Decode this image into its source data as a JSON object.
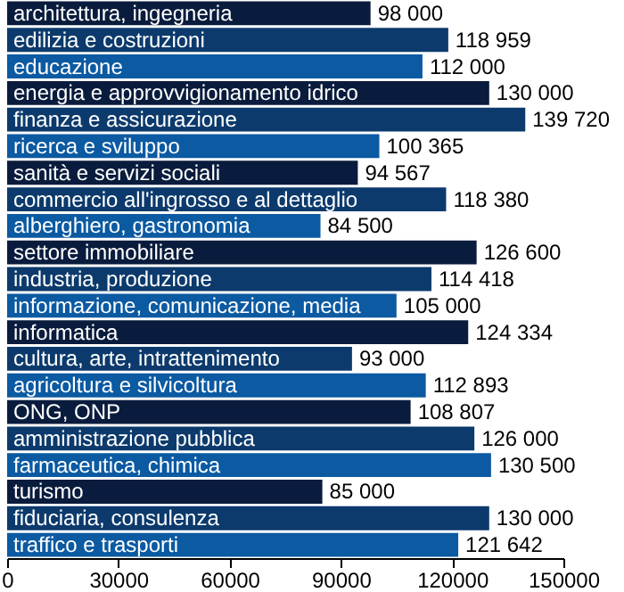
{
  "chart_data": {
    "type": "bar",
    "orientation": "horizontal",
    "categories": [
      "architettura, ingegneria",
      "edilizia e costruzioni",
      "educazione",
      "energia e approvvigionamento idrico",
      "finanza e assicurazione",
      "ricerca e sviluppo",
      "sanità e servizi sociali",
      "commercio all'ingrosso e al dettaglio",
      "alberghiero, gastronomia",
      "settore immobiliare",
      "industria, produzione",
      "informazione, comunicazione, media",
      "informatica",
      "cultura, arte, intrattenimento",
      "agricoltura e silvicoltura",
      "ONG, ONP",
      "amministrazione pubblica",
      "farmaceutica, chimica",
      "turismo",
      "fiduciaria, consulenza",
      "traffico e trasporti"
    ],
    "values": [
      98000,
      118959,
      112000,
      130000,
      139720,
      100365,
      94567,
      118380,
      84500,
      126600,
      114418,
      105000,
      124334,
      93000,
      112893,
      108807,
      126000,
      130500,
      85000,
      130000,
      121642
    ],
    "value_labels": [
      "98 000",
      "118 959",
      "112 000",
      "130 000",
      "139 720",
      "100 365",
      "94 567",
      "118 380",
      "84 500",
      "126 600",
      "114 418",
      "105 000",
      "124 334",
      "93 000",
      "112 893",
      "108 807",
      "126 000",
      "130 500",
      "85 000",
      "130 000",
      "121 642"
    ],
    "colors": [
      "#0a1c3d",
      "#0c3a6c",
      "#0b5aa2",
      "#0a1c3d",
      "#0c3a6c",
      "#0b5aa2",
      "#0a1c3d",
      "#0c3a6c",
      "#0b5aa2",
      "#0a1c3d",
      "#0c3a6c",
      "#0b5aa2",
      "#0a1c3d",
      "#0c3a6c",
      "#0b5aa2",
      "#0a1c3d",
      "#0c3a6c",
      "#0b5aa2",
      "#0a1c3d",
      "#0c3a6c",
      "#0b5aa2"
    ],
    "xlim": [
      0,
      150000
    ],
    "xticks": [
      0,
      30000,
      60000,
      90000,
      120000,
      150000
    ],
    "data_labels": false
  }
}
